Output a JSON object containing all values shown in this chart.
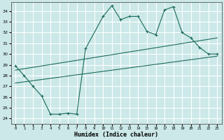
{
  "xlabel": "Humidex (Indice chaleur)",
  "ylabel": "",
  "bg_color": "#cce8e8",
  "grid_color": "#b8d8d8",
  "line_color": "#1a6b5a",
  "xlim": [
    -0.5,
    23.5
  ],
  "ylim": [
    23.5,
    34.8
  ],
  "xticks": [
    0,
    1,
    2,
    3,
    4,
    5,
    6,
    7,
    8,
    9,
    10,
    11,
    12,
    13,
    14,
    15,
    16,
    17,
    18,
    19,
    20,
    21,
    22,
    23
  ],
  "yticks": [
    24,
    25,
    26,
    27,
    28,
    29,
    30,
    31,
    32,
    33,
    34
  ],
  "series1_x": [
    0,
    1,
    2,
    3,
    4,
    5,
    6,
    7,
    8,
    10,
    11,
    12,
    13,
    14,
    15,
    16,
    17,
    18,
    19,
    20,
    21,
    22,
    23
  ],
  "series1_y": [
    28.9,
    28.0,
    27.0,
    26.1,
    24.4,
    24.4,
    24.5,
    24.4,
    30.5,
    33.5,
    34.5,
    33.2,
    33.5,
    33.5,
    32.1,
    31.8,
    34.1,
    34.4,
    32.0,
    31.5,
    30.6,
    30.0,
    30.0
  ],
  "series2_x": [
    0,
    23
  ],
  "series2_y": [
    28.5,
    31.5
  ],
  "series3_x": [
    0,
    23
  ],
  "series3_y": [
    27.3,
    29.8
  ]
}
